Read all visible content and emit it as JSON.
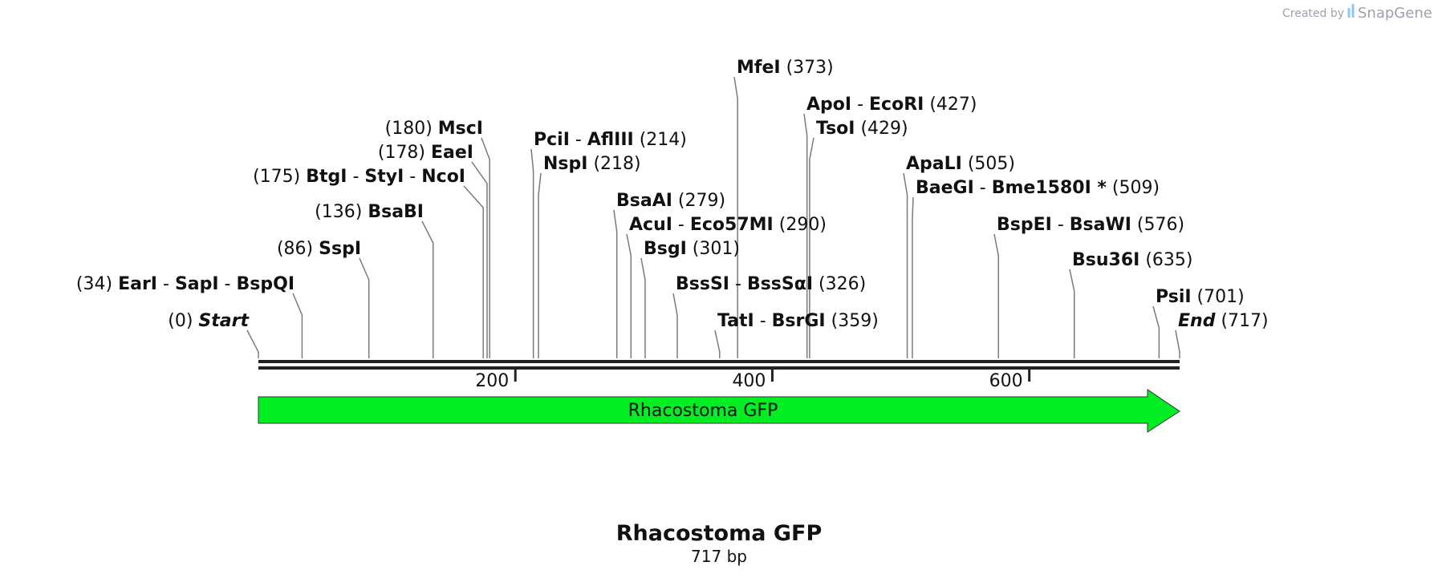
{
  "credit": {
    "prefix": "Created by",
    "brand": "SnapGene"
  },
  "map": {
    "length_bp": 717,
    "ticks": [
      {
        "value": 200,
        "label": "200"
      },
      {
        "value": 400,
        "label": "400"
      },
      {
        "value": 600,
        "label": "600"
      }
    ],
    "feature": {
      "name": "Rhacostoma GFP",
      "start": 0,
      "end": 717,
      "direction": "forward",
      "color": "#00ee22"
    },
    "title": "Rhacostoma GFP",
    "subtitle": "717 bp"
  },
  "sites": [
    {
      "names": [
        "MfeI"
      ],
      "pos": 373,
      "pos_label": "(373)",
      "side": "right"
    },
    {
      "names": [
        "ApoI",
        "EcoRI"
      ],
      "pos": 427,
      "pos_label": "(427)",
      "side": "right"
    },
    {
      "names": [
        "TsoI"
      ],
      "pos": 429,
      "pos_label": "(429)",
      "side": "right"
    },
    {
      "names": [
        "MscI"
      ],
      "pos": 180,
      "pos_label": "(180)",
      "side": "left"
    },
    {
      "names": [
        "PciI",
        "AflIII"
      ],
      "pos": 214,
      "pos_label": "(214)",
      "side": "right"
    },
    {
      "names": [
        "EaeI"
      ],
      "pos": 178,
      "pos_label": "(178)",
      "side": "left"
    },
    {
      "names": [
        "NspI"
      ],
      "pos": 218,
      "pos_label": "(218)",
      "side": "right"
    },
    {
      "names": [
        "ApaLI"
      ],
      "pos": 505,
      "pos_label": "(505)",
      "side": "right"
    },
    {
      "names": [
        "BtgI",
        "StyI",
        "NcoI"
      ],
      "pos": 175,
      "pos_label": "(175)",
      "side": "left"
    },
    {
      "names": [
        "BaeGI",
        "Bme1580I *"
      ],
      "pos": 509,
      "pos_label": "(509)",
      "side": "right"
    },
    {
      "names": [
        "BsaAI"
      ],
      "pos": 279,
      "pos_label": "(279)",
      "side": "right"
    },
    {
      "names": [
        "BsaBI"
      ],
      "pos": 136,
      "pos_label": "(136)",
      "side": "left"
    },
    {
      "names": [
        "AcuI",
        "Eco57MI"
      ],
      "pos": 290,
      "pos_label": "(290)",
      "side": "right"
    },
    {
      "names": [
        "BspEI",
        "BsaWI"
      ],
      "pos": 576,
      "pos_label": "(576)",
      "side": "right"
    },
    {
      "names": [
        "SspI"
      ],
      "pos": 86,
      "pos_label": "(86)",
      "side": "left"
    },
    {
      "names": [
        "BsgI"
      ],
      "pos": 301,
      "pos_label": "(301)",
      "side": "right"
    },
    {
      "names": [
        "Bsu36I"
      ],
      "pos": 635,
      "pos_label": "(635)",
      "side": "right"
    },
    {
      "names": [
        "EarI",
        "SapI",
        "BspQI"
      ],
      "pos": 34,
      "pos_label": "(34)",
      "side": "left"
    },
    {
      "names": [
        "BssSI",
        "BssSαI"
      ],
      "pos": 326,
      "pos_label": "(326)",
      "side": "right"
    },
    {
      "names": [
        "PsiI"
      ],
      "pos": 701,
      "pos_label": "(701)",
      "side": "right"
    },
    {
      "names": [
        "Start"
      ],
      "pos": 0,
      "pos_label": "(0)",
      "side": "left",
      "italic": true
    },
    {
      "names": [
        "TatI",
        "BsrGI"
      ],
      "pos": 359,
      "pos_label": "(359)",
      "side": "right"
    },
    {
      "names": [
        "End"
      ],
      "pos": 717,
      "pos_label": "(717)",
      "side": "right",
      "italic": true
    }
  ]
}
